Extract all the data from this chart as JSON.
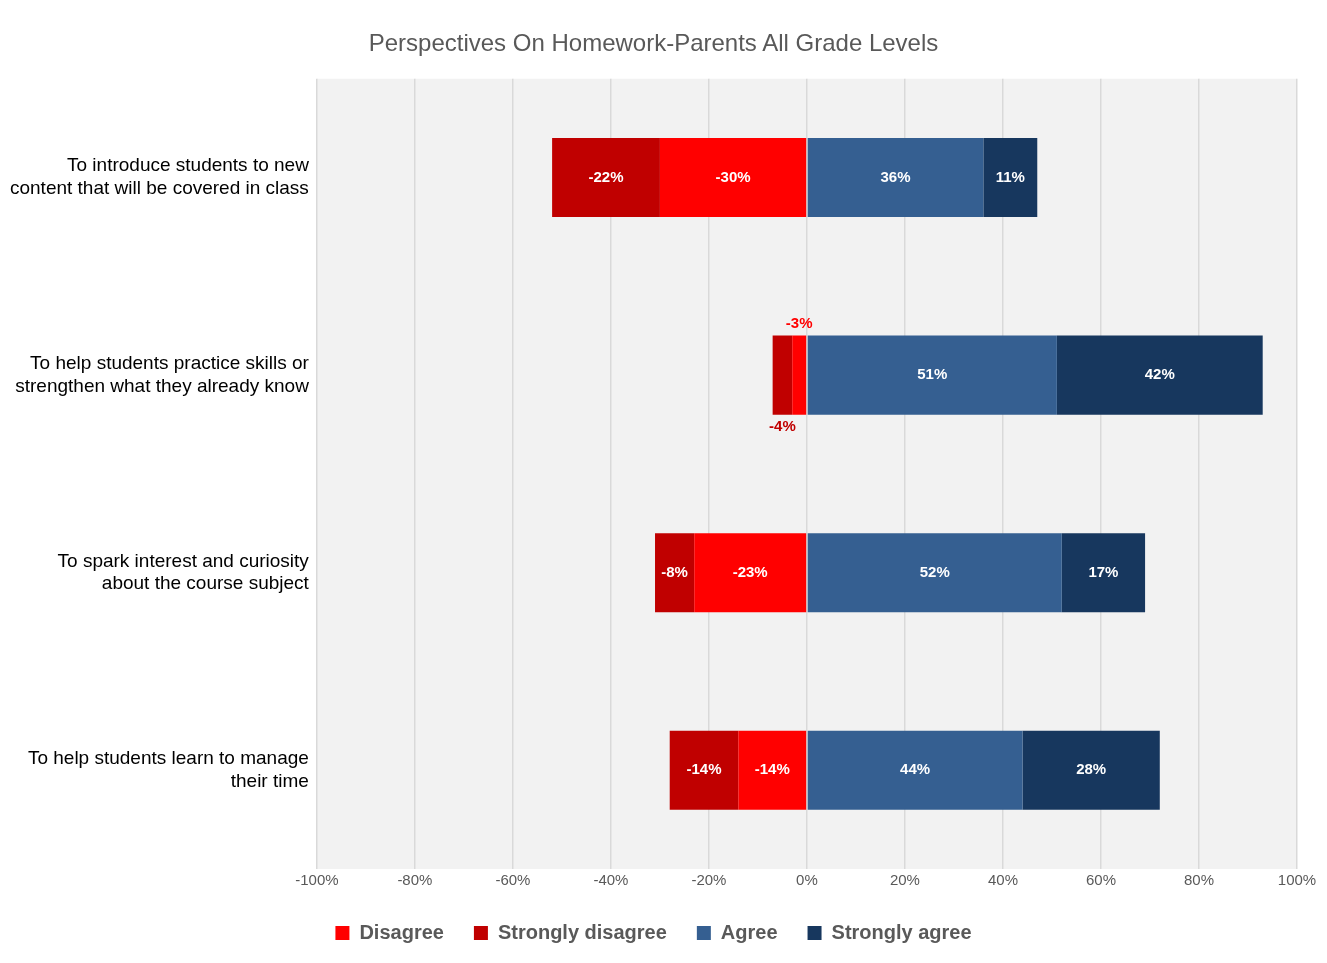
{
  "chart_data": {
    "type": "bar",
    "orientation": "horizontal",
    "stacked": true,
    "title": "Perspectives On Homework-Parents All Grade Levels",
    "categories": [
      "To introduce students to new content that will be covered in class",
      "To help students practice skills or strengthen what they already know",
      "To spark interest and curiosity about the course subject",
      "To help students learn to manage their time"
    ],
    "series": [
      {
        "name": "Disagree",
        "color": "#ff0000",
        "values": [
          -30,
          -3,
          -23,
          -14
        ],
        "value_labels": [
          "-30%",
          "-3%",
          "-23%",
          "-14%"
        ]
      },
      {
        "name": "Strongly disagree",
        "color": "#c00000",
        "values": [
          -22,
          -4,
          -8,
          -14
        ],
        "value_labels": [
          "-22%",
          "-4%",
          "-8%",
          "-14%"
        ]
      },
      {
        "name": "Agree",
        "color": "#355f91",
        "values": [
          36,
          51,
          52,
          44
        ],
        "value_labels": [
          "36%",
          "51%",
          "52%",
          "44%"
        ]
      },
      {
        "name": "Strongly agree",
        "color": "#17375e",
        "values": [
          11,
          42,
          17,
          28
        ],
        "value_labels": [
          "11%",
          "42%",
          "17%",
          "28%"
        ]
      }
    ],
    "xlim": [
      -100,
      100
    ],
    "xticks": [
      {
        "value": -100,
        "label": "-100%"
      },
      {
        "value": -80,
        "label": "-80%"
      },
      {
        "value": -60,
        "label": "-60%"
      },
      {
        "value": -40,
        "label": "-40%"
      },
      {
        "value": -20,
        "label": "-20%"
      },
      {
        "value": 0,
        "label": "0%"
      },
      {
        "value": 20,
        "label": "20%"
      },
      {
        "value": 40,
        "label": "40%"
      },
      {
        "value": 60,
        "label": "60%"
      },
      {
        "value": 80,
        "label": "80%"
      },
      {
        "value": 100,
        "label": "100%"
      }
    ],
    "grid": "x",
    "legend": "bottom"
  }
}
